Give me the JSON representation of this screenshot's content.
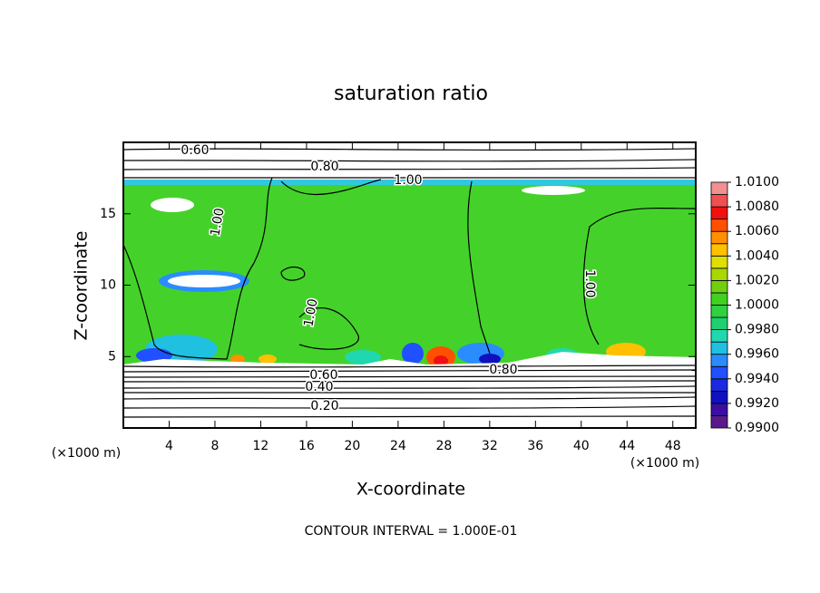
{
  "chart_data": {
    "type": "contour",
    "title": "saturation ratio",
    "x_label": "X-coordinate",
    "y_label": "Z-coordinate",
    "x_unit": "(×1000 m)",
    "y_unit": "(×1000 m)",
    "footnote": "CONTOUR INTERVAL = 1.000E-01",
    "xlim": [
      0,
      50
    ],
    "xticks": [
      4,
      8,
      12,
      16,
      20,
      24,
      28,
      32,
      36,
      40,
      44,
      48
    ],
    "ylim": [
      0,
      20
    ],
    "yticks": [
      5,
      10,
      15
    ],
    "contour_labels": [
      "0.60",
      "0.80",
      "1.00",
      "1.00",
      "1.00",
      "1.00",
      "0.60",
      "0.40",
      "0.20",
      "0.80"
    ],
    "colorbar": {
      "levels": [
        0.99,
        0.991,
        0.992,
        0.993,
        0.994,
        0.995,
        0.996,
        0.997,
        0.998,
        0.999,
        1.0,
        1.001,
        1.002,
        1.003,
        1.004,
        1.005,
        1.006,
        1.007,
        1.008,
        1.009,
        1.01
      ],
      "colors": [
        "#5a1a8c",
        "#3a0fa0",
        "#1010c0",
        "#1a2ae0",
        "#2050ff",
        "#2a8cff",
        "#20c0e0",
        "#20d8b0",
        "#20d070",
        "#30d040",
        "#40d020",
        "#70d010",
        "#a8d800",
        "#e0e000",
        "#ffc000",
        "#ff9000",
        "#ff5000",
        "#f01010",
        "#f05050",
        "#f09090"
      ],
      "ticks": [
        {
          "value": 0.99,
          "label": "0.9900"
        },
        {
          "value": 0.992,
          "label": "0.9920"
        },
        {
          "value": 0.994,
          "label": "0.9940"
        },
        {
          "value": 0.996,
          "label": "0.9960"
        },
        {
          "value": 0.998,
          "label": "0.9980"
        },
        {
          "value": 1.0,
          "label": "1.0000"
        },
        {
          "value": 1.002,
          "label": "1.0020"
        },
        {
          "value": 1.004,
          "label": "1.0040"
        },
        {
          "value": 1.006,
          "label": "1.0060"
        },
        {
          "value": 1.008,
          "label": "1.0080"
        },
        {
          "value": 1.01,
          "label": "1.0100"
        }
      ]
    }
  }
}
